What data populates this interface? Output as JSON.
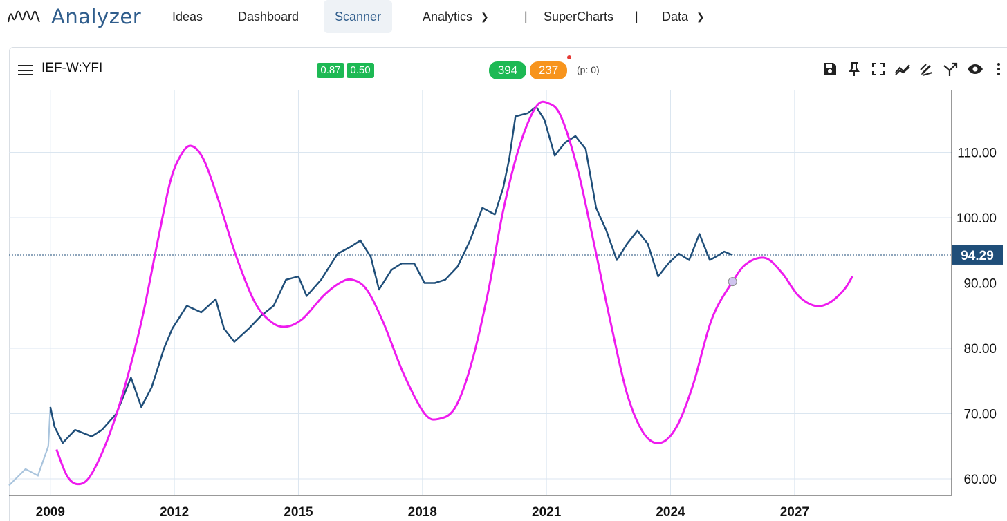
{
  "app": {
    "title": "Analyzer"
  },
  "nav": {
    "ideas": "Ideas",
    "dashboard": "Dashboard",
    "scanner": "Scanner",
    "analytics": "Analytics",
    "separator": "|",
    "supercharts": "SuperCharts",
    "data": "Data"
  },
  "toolbar": {
    "symbol": "IEF-W:YFI",
    "badge1": "0.87",
    "badge2": "0.50",
    "count_green": "394",
    "count_orange": "237",
    "p_value": "(p: 0)",
    "icons": [
      "save-icon",
      "pin-icon",
      "fullscreen-icon",
      "trend-icon",
      "draw-icon",
      "fork-icon",
      "eye-icon",
      "more-icon"
    ]
  },
  "colors": {
    "price_line": "#1f4e79",
    "price_early": "#a9c4dd",
    "cycle_line": "#ee1bee",
    "grid": "#dbe6f0",
    "last_price_bg": "#1f4e79",
    "badge_green": "#1db954",
    "badge_orange": "#f7941d",
    "brand": "#2f5d8c"
  },
  "chart_data": {
    "type": "line",
    "symbol": "IEF-W:YFI",
    "x_ticks": [
      "2009",
      "2012",
      "2015",
      "2018",
      "2021",
      "2024",
      "2027"
    ],
    "y_ticks": [
      "60.00",
      "70.00",
      "80.00",
      "90.00",
      "100.00",
      "110.00"
    ],
    "ylim": [
      58,
      117
    ],
    "xlim": [
      2008.0,
      2030.8
    ],
    "grid": true,
    "last_price_label": "94.29",
    "series": [
      {
        "role": "price",
        "points": [
          [
            2008.0,
            59.0
          ],
          [
            2008.4,
            61.5
          ],
          [
            2008.7,
            60.5
          ],
          [
            2008.95,
            65.0
          ],
          [
            2009.0,
            71.0
          ],
          [
            2009.1,
            68.0
          ],
          [
            2009.3,
            65.5
          ],
          [
            2009.6,
            67.5
          ],
          [
            2010.0,
            66.5
          ],
          [
            2010.25,
            67.5
          ],
          [
            2010.6,
            70.0
          ],
          [
            2010.95,
            75.5
          ],
          [
            2011.2,
            71.0
          ],
          [
            2011.45,
            74.0
          ],
          [
            2011.75,
            80.0
          ],
          [
            2011.95,
            83.0
          ],
          [
            2012.3,
            86.5
          ],
          [
            2012.65,
            85.5
          ],
          [
            2013.0,
            87.5
          ],
          [
            2013.2,
            83.0
          ],
          [
            2013.45,
            81.0
          ],
          [
            2013.8,
            83.0
          ],
          [
            2014.1,
            85.0
          ],
          [
            2014.4,
            86.5
          ],
          [
            2014.7,
            90.5
          ],
          [
            2015.0,
            91.0
          ],
          [
            2015.2,
            88.0
          ],
          [
            2015.55,
            90.5
          ],
          [
            2015.95,
            94.5
          ],
          [
            2016.25,
            95.5
          ],
          [
            2016.5,
            96.5
          ],
          [
            2016.75,
            94.0
          ],
          [
            2016.95,
            89.0
          ],
          [
            2017.25,
            92.0
          ],
          [
            2017.5,
            93.0
          ],
          [
            2017.8,
            93.0
          ],
          [
            2018.05,
            90.0
          ],
          [
            2018.3,
            90.0
          ],
          [
            2018.55,
            90.5
          ],
          [
            2018.85,
            92.5
          ],
          [
            2019.15,
            96.5
          ],
          [
            2019.45,
            101.5
          ],
          [
            2019.75,
            100.5
          ],
          [
            2019.95,
            104.5
          ],
          [
            2020.1,
            109.0
          ],
          [
            2020.25,
            115.5
          ],
          [
            2020.55,
            116.0
          ],
          [
            2020.75,
            117.0
          ],
          [
            2020.95,
            115.0
          ],
          [
            2021.2,
            109.5
          ],
          [
            2021.45,
            111.5
          ],
          [
            2021.7,
            112.5
          ],
          [
            2021.95,
            110.5
          ],
          [
            2022.2,
            101.5
          ],
          [
            2022.45,
            98.0
          ],
          [
            2022.7,
            93.5
          ],
          [
            2022.95,
            96.0
          ],
          [
            2023.2,
            98.0
          ],
          [
            2023.45,
            96.0
          ],
          [
            2023.7,
            91.0
          ],
          [
            2023.95,
            93.0
          ],
          [
            2024.2,
            94.5
          ],
          [
            2024.45,
            93.5
          ],
          [
            2024.7,
            97.5
          ],
          [
            2024.95,
            93.5
          ],
          [
            2025.15,
            94.2
          ],
          [
            2025.3,
            94.8
          ],
          [
            2025.5,
            94.29
          ]
        ]
      },
      {
        "role": "cycle_projection",
        "points": [
          [
            2009.15,
            64.5
          ],
          [
            2009.4,
            60.5
          ],
          [
            2009.65,
            59.2
          ],
          [
            2009.95,
            60.3
          ],
          [
            2010.35,
            65.5
          ],
          [
            2010.75,
            73.0
          ],
          [
            2011.2,
            84.0
          ],
          [
            2011.6,
            96.5
          ],
          [
            2011.9,
            105.5
          ],
          [
            2012.15,
            109.5
          ],
          [
            2012.4,
            111.0
          ],
          [
            2012.7,
            109.0
          ],
          [
            2013.05,
            103.0
          ],
          [
            2013.5,
            94.0
          ],
          [
            2013.95,
            87.0
          ],
          [
            2014.35,
            84.0
          ],
          [
            2014.7,
            83.3
          ],
          [
            2015.1,
            84.5
          ],
          [
            2015.6,
            88.0
          ],
          [
            2016.0,
            90.0
          ],
          [
            2016.3,
            90.5
          ],
          [
            2016.65,
            89.0
          ],
          [
            2017.05,
            84.0
          ],
          [
            2017.55,
            76.0
          ],
          [
            2018.05,
            70.0
          ],
          [
            2018.4,
            69.2
          ],
          [
            2018.8,
            71.0
          ],
          [
            2019.2,
            78.0
          ],
          [
            2019.6,
            89.0
          ],
          [
            2019.95,
            101.0
          ],
          [
            2020.35,
            111.0
          ],
          [
            2020.75,
            117.0
          ],
          [
            2021.05,
            117.5
          ],
          [
            2021.35,
            115.5
          ],
          [
            2021.75,
            107.5
          ],
          [
            2022.15,
            96.0
          ],
          [
            2022.55,
            84.0
          ],
          [
            2022.95,
            73.0
          ],
          [
            2023.35,
            67.0
          ],
          [
            2023.75,
            65.5
          ],
          [
            2024.15,
            68.0
          ],
          [
            2024.55,
            74.5
          ],
          [
            2025.0,
            84.5
          ],
          [
            2025.5,
            90.2
          ],
          [
            2025.85,
            93.0
          ],
          [
            2026.3,
            93.8
          ],
          [
            2026.7,
            91.5
          ],
          [
            2027.1,
            88.0
          ],
          [
            2027.5,
            86.5
          ],
          [
            2027.85,
            87.0
          ],
          [
            2028.2,
            89.0
          ],
          [
            2028.4,
            91.0
          ]
        ]
      }
    ],
    "marker_point": [
      2025.5,
      90.2
    ]
  }
}
